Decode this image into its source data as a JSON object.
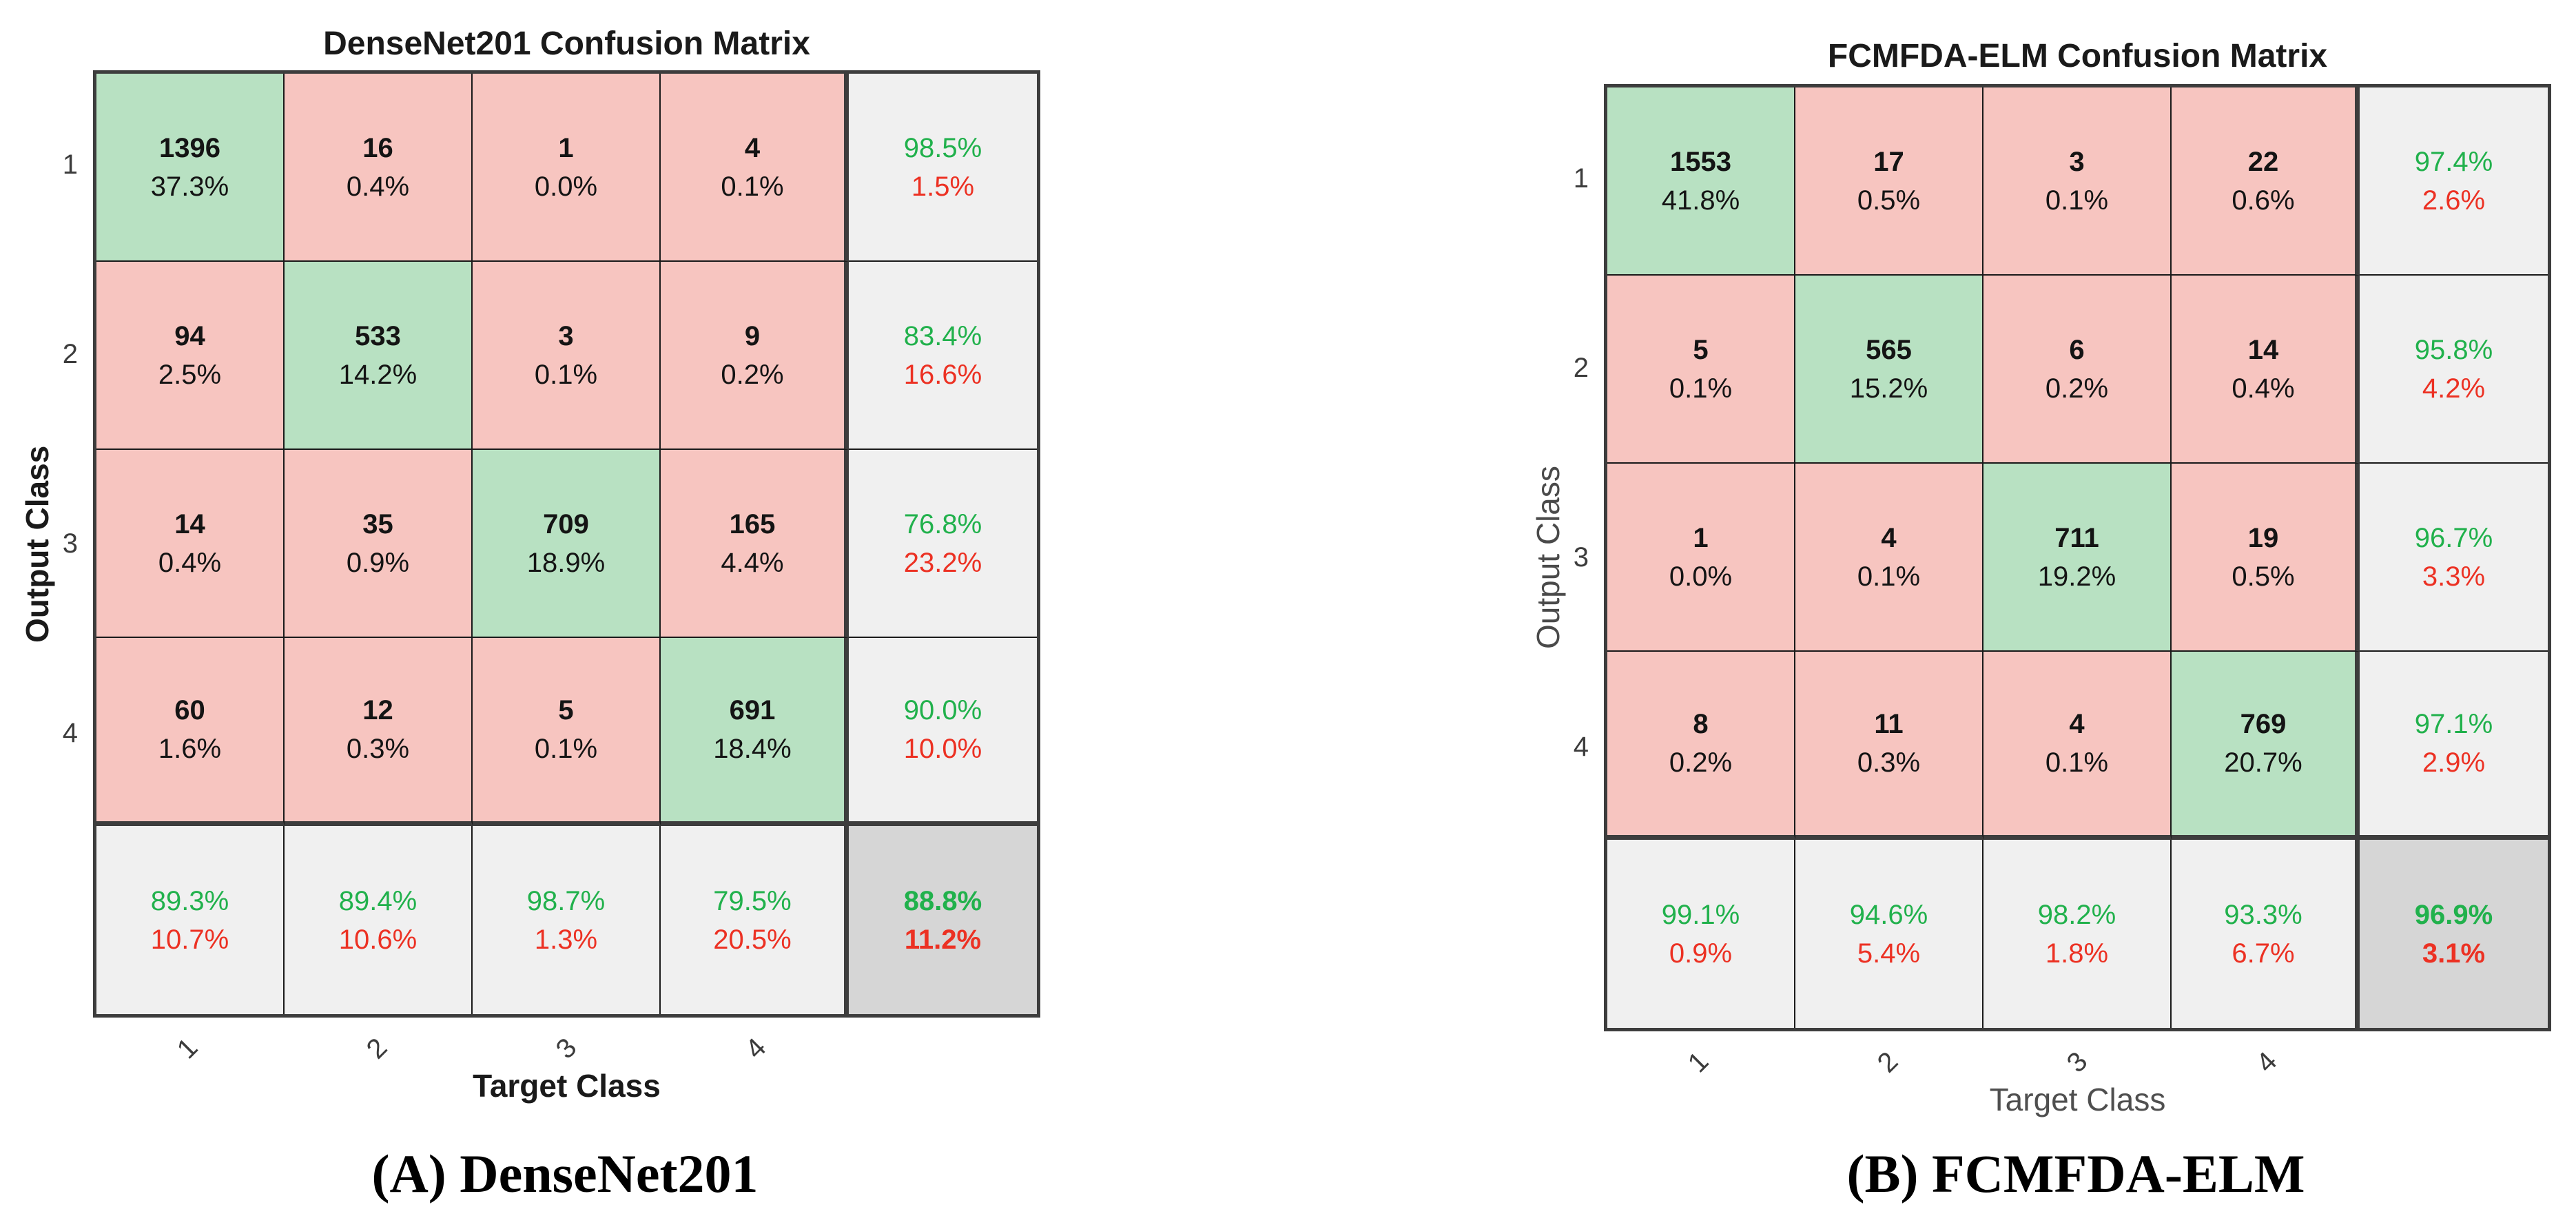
{
  "figure": {
    "description": "Two side-by-side confusion matrix plots comparing classifiers"
  },
  "colors": {
    "diagonal_fill": "#b8e1c2",
    "off_diagonal_fill": "#f7c5c0",
    "summary_fill": "#f0f0f0",
    "total_fill": "#d6d6d6",
    "correct_text": "#21b14c",
    "error_text": "#ec3123",
    "count_text": "#141414",
    "grid_line": "#1a1a1a",
    "frame_line": "#3d3d3d"
  },
  "chart_data": [
    {
      "type": "heatmap",
      "title": "DenseNet201 Confusion Matrix",
      "caption": "(A) DenseNet201",
      "xlabel": "Target Class",
      "ylabel": "Output Class",
      "classes": [
        "1",
        "2",
        "3",
        "4"
      ],
      "matrix_counts": [
        [
          1396,
          16,
          1,
          4
        ],
        [
          94,
          533,
          3,
          9
        ],
        [
          14,
          35,
          709,
          165
        ],
        [
          60,
          12,
          5,
          691
        ]
      ],
      "matrix_pct": [
        [
          "37.3%",
          "0.4%",
          "0.0%",
          "0.1%"
        ],
        [
          "2.5%",
          "14.2%",
          "0.1%",
          "0.2%"
        ],
        [
          "0.4%",
          "0.9%",
          "18.9%",
          "4.4%"
        ],
        [
          "1.6%",
          "0.3%",
          "0.1%",
          "18.4%"
        ]
      ],
      "row_summary": [
        [
          "98.5%",
          "1.5%"
        ],
        [
          "83.4%",
          "16.6%"
        ],
        [
          "76.8%",
          "23.2%"
        ],
        [
          "90.0%",
          "10.0%"
        ]
      ],
      "col_summary": [
        [
          "89.3%",
          "10.7%"
        ],
        [
          "89.4%",
          "10.6%"
        ],
        [
          "98.7%",
          "1.3%"
        ],
        [
          "79.5%",
          "20.5%"
        ]
      ],
      "overall": [
        "88.8%",
        "11.2%"
      ],
      "legend_note": "green = correct, red = error, last row/column = class precision/recall summaries"
    },
    {
      "type": "heatmap",
      "title": "FCMFDA-ELM Confusion Matrix",
      "caption": "(B) FCMFDA-ELM",
      "xlabel": "Target Class",
      "ylabel": "Output Class",
      "classes": [
        "1",
        "2",
        "3",
        "4"
      ],
      "matrix_counts": [
        [
          1553,
          17,
          3,
          22
        ],
        [
          5,
          565,
          6,
          14
        ],
        [
          1,
          4,
          711,
          19
        ],
        [
          8,
          11,
          4,
          769
        ]
      ],
      "matrix_pct": [
        [
          "41.8%",
          "0.5%",
          "0.1%",
          "0.6%"
        ],
        [
          "0.1%",
          "15.2%",
          "0.2%",
          "0.4%"
        ],
        [
          "0.0%",
          "0.1%",
          "19.2%",
          "0.5%"
        ],
        [
          "0.2%",
          "0.3%",
          "0.1%",
          "20.7%"
        ]
      ],
      "row_summary": [
        [
          "97.4%",
          "2.6%"
        ],
        [
          "95.8%",
          "4.2%"
        ],
        [
          "96.7%",
          "3.3%"
        ],
        [
          "97.1%",
          "2.9%"
        ]
      ],
      "col_summary": [
        [
          "99.1%",
          "0.9%"
        ],
        [
          "94.6%",
          "5.4%"
        ],
        [
          "98.2%",
          "1.8%"
        ],
        [
          "93.3%",
          "6.7%"
        ]
      ],
      "overall": [
        "96.9%",
        "3.1%"
      ],
      "legend_note": "green = correct, red = error, last row/column = class precision/recall summaries"
    }
  ]
}
